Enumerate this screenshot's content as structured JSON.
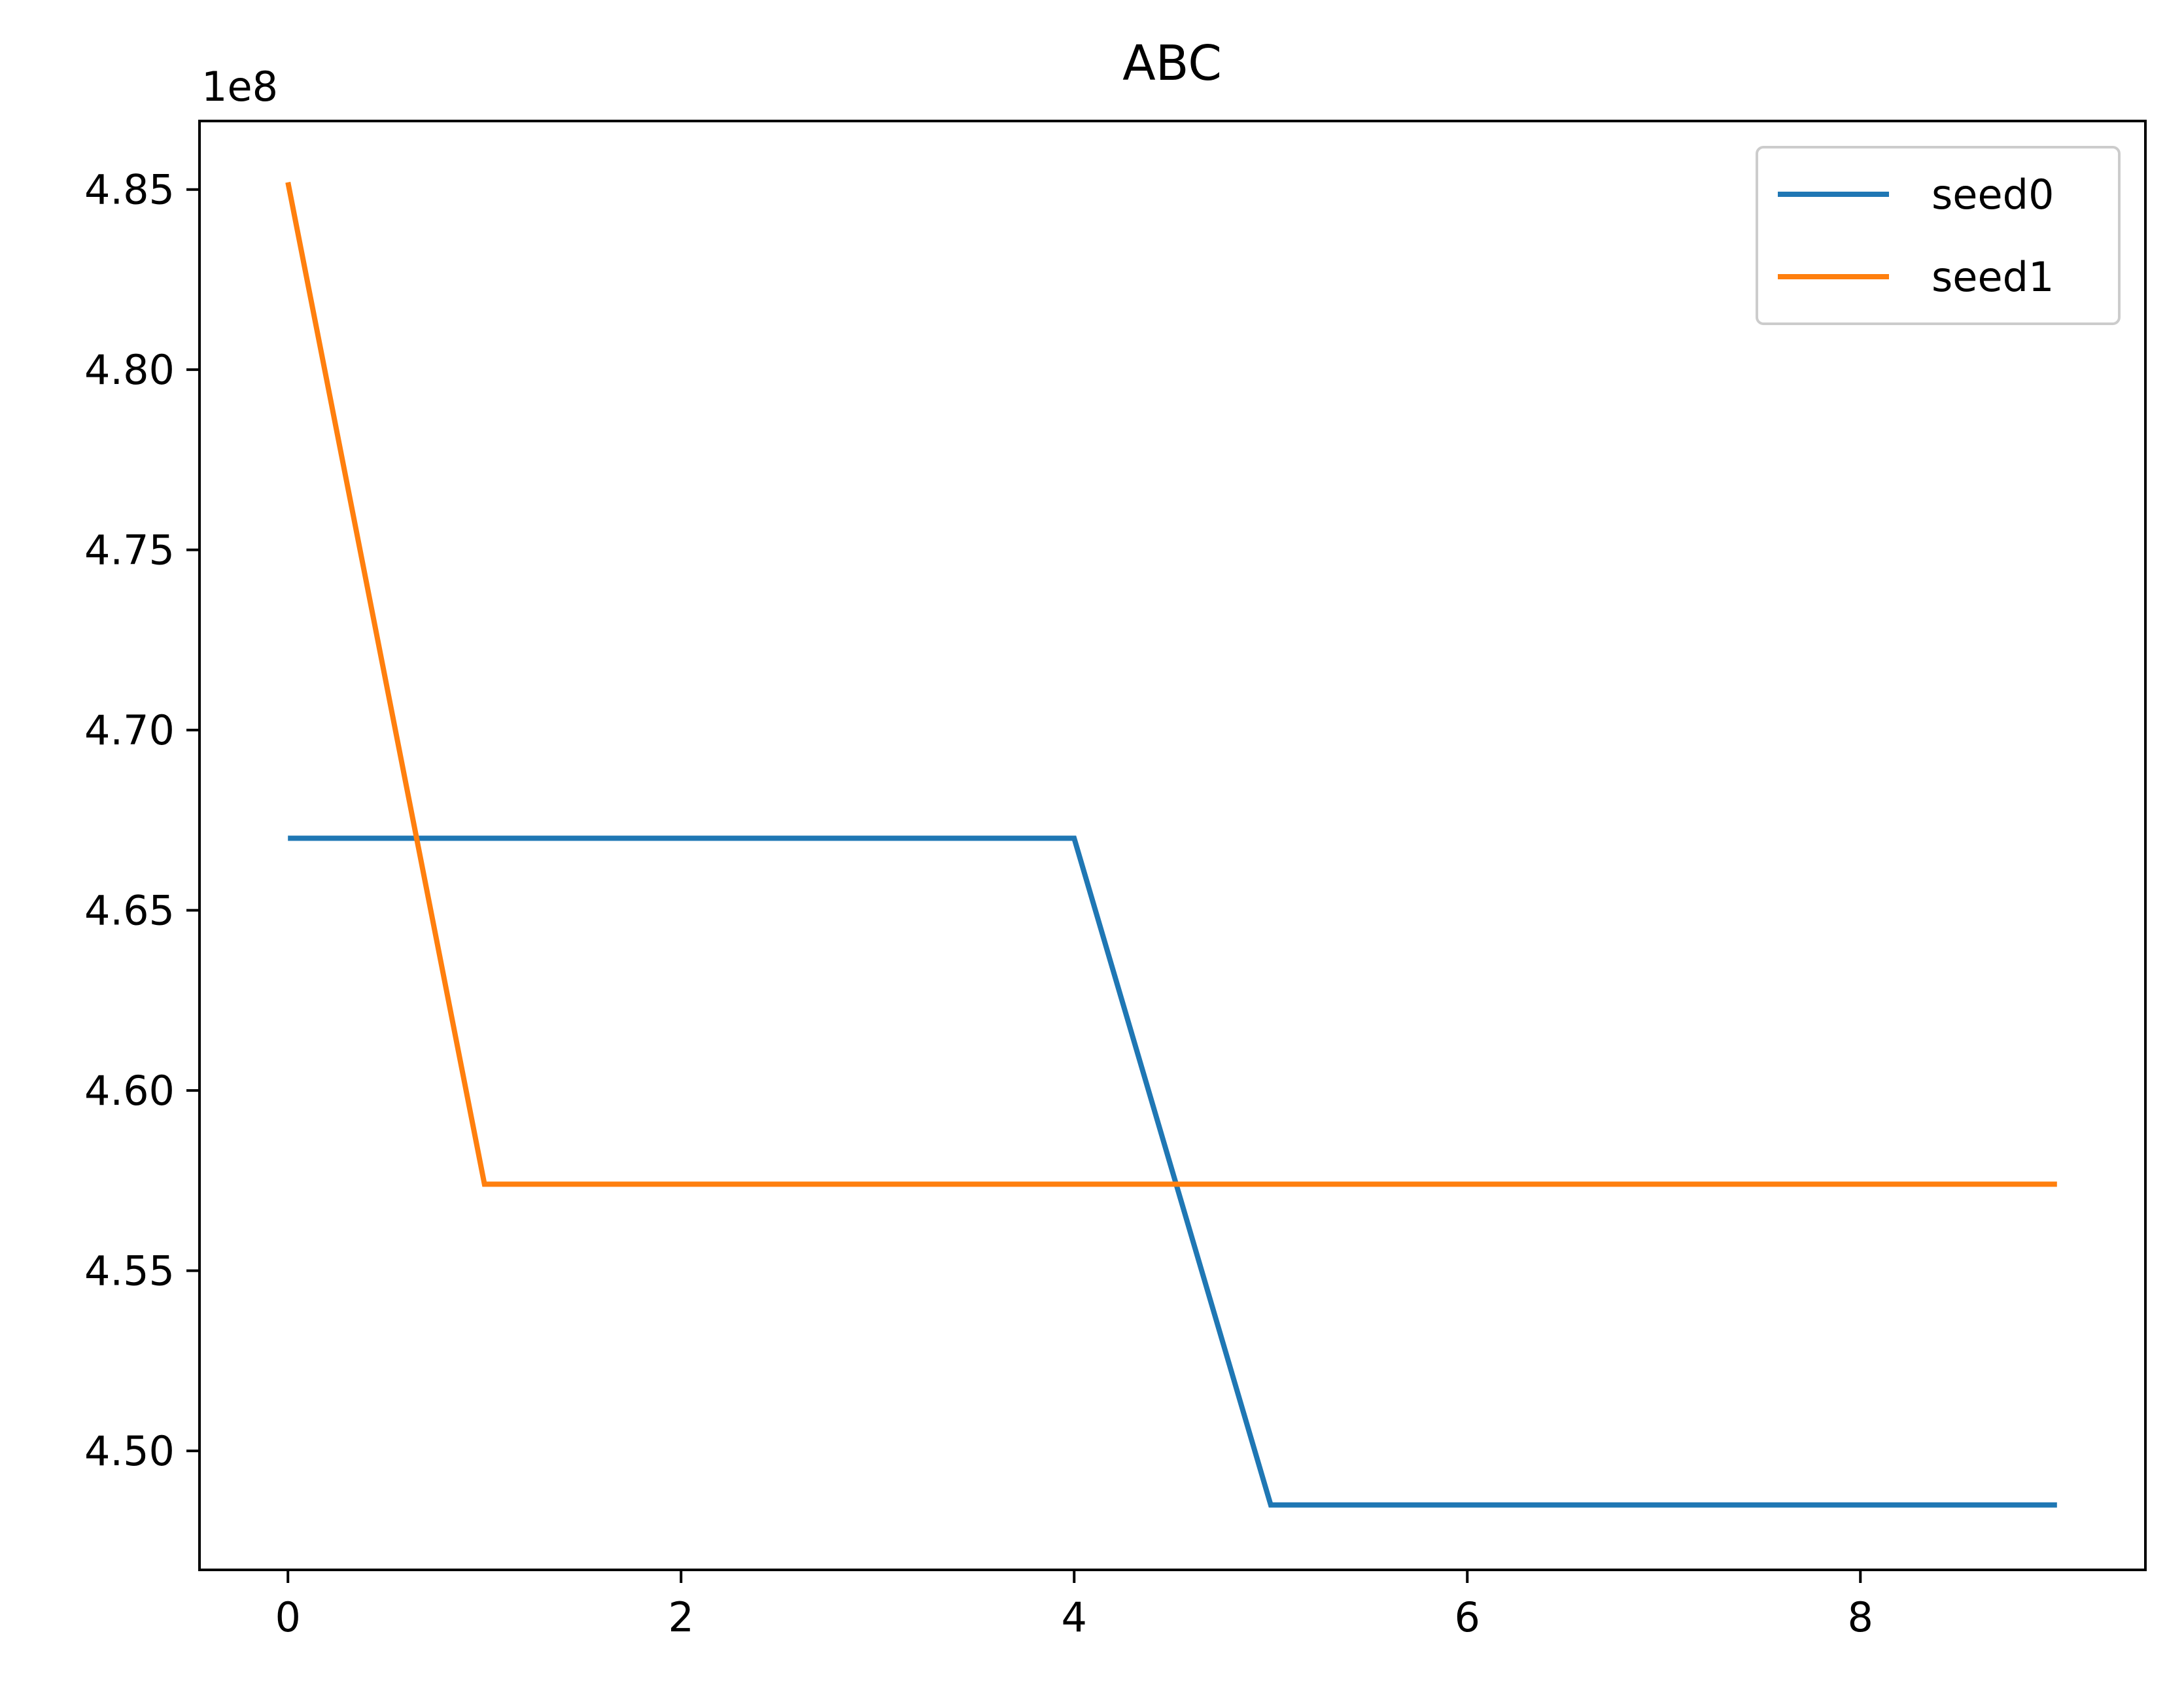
{
  "chart_data": {
    "type": "line",
    "title": "ABC",
    "xlabel": "",
    "ylabel": "",
    "y_offset_label": "1e8",
    "xlim": [
      -0.45,
      9.45
    ],
    "ylim": [
      4.467,
      4.869
    ],
    "x_ticks": [
      0,
      2,
      4,
      6,
      8
    ],
    "x_tick_labels": [
      "0",
      "2",
      "4",
      "6",
      "8"
    ],
    "y_ticks": [
      4.5,
      4.55,
      4.6,
      4.65,
      4.7,
      4.75,
      4.8,
      4.85
    ],
    "y_tick_labels": [
      "4.50",
      "4.55",
      "4.60",
      "4.65",
      "4.70",
      "4.75",
      "4.80",
      "4.85"
    ],
    "grid": false,
    "legend": "top-right",
    "x": [
      0,
      1,
      2,
      3,
      4,
      5,
      6,
      7,
      8,
      9
    ],
    "series": [
      {
        "name": "seed0",
        "color": "#1f77b4",
        "values": [
          4.67,
          4.67,
          4.67,
          4.67,
          4.67,
          4.485,
          4.485,
          4.485,
          4.485,
          4.485
        ]
      },
      {
        "name": "seed1",
        "color": "#ff7f0e",
        "values": [
          4.852,
          4.574,
          4.574,
          4.574,
          4.574,
          4.574,
          4.574,
          4.574,
          4.574,
          4.574
        ]
      }
    ]
  }
}
